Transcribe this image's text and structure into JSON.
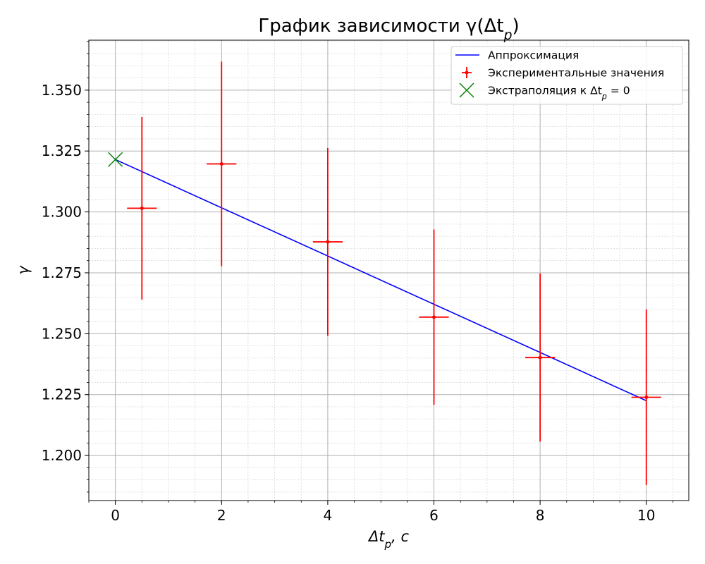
{
  "chart_data": {
    "type": "scatter",
    "title": "График зависимости γ(Δt_p)",
    "xlabel": "Δt_p, c",
    "ylabel": "γ",
    "xlim": [
      -0.5,
      10.8
    ],
    "ylim": [
      1.1815,
      1.3705
    ],
    "xticks": [
      0,
      2,
      4,
      6,
      8,
      10
    ],
    "xtick_labels": [
      "0",
      "2",
      "4",
      "6",
      "8",
      "10"
    ],
    "yticks": [
      1.2,
      1.225,
      1.25,
      1.275,
      1.3,
      1.325,
      1.35
    ],
    "ytick_labels": [
      "1.200",
      "1.225",
      "1.250",
      "1.275",
      "1.300",
      "1.325",
      "1.350"
    ],
    "grid": true,
    "minor_grid": true,
    "legend_position": "top-right",
    "series": [
      {
        "name": "Аппроксимация",
        "kind": "line",
        "color": "#0000ff",
        "x": [
          0,
          10
        ],
        "y": [
          1.3215,
          1.2225
        ]
      },
      {
        "name": "Экспериментальные значения",
        "kind": "errorbar",
        "color": "#ff0000",
        "points": [
          {
            "x": 0.5,
            "y": 1.3015,
            "xerr": 0.28,
            "yerr": 0.0375
          },
          {
            "x": 2,
            "y": 1.3197,
            "xerr": 0.28,
            "yerr": 0.042
          },
          {
            "x": 4,
            "y": 1.2877,
            "xerr": 0.28,
            "yerr": 0.0385
          },
          {
            "x": 6,
            "y": 1.2568,
            "xerr": 0.28,
            "yerr": 0.036
          },
          {
            "x": 8,
            "y": 1.2402,
            "xerr": 0.28,
            "yerr": 0.0345
          },
          {
            "x": 10,
            "y": 1.2239,
            "xerr": 0.28,
            "yerr": 0.036
          }
        ]
      },
      {
        "name": "Экстраполяция к Δt_p = 0",
        "kind": "marker",
        "color": "#008000",
        "x": [
          0
        ],
        "y": [
          1.3215
        ]
      }
    ]
  }
}
